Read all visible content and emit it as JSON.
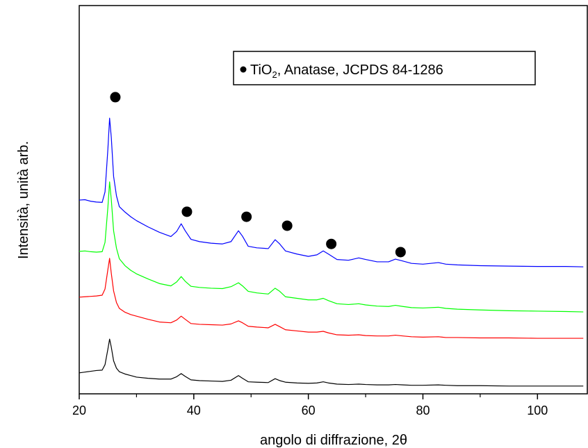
{
  "chart_data": {
    "type": "line",
    "x_label": "angolo di diffrazione, 2θ",
    "y_label": "Intensità, unità arb.",
    "xlim": [
      20,
      108.7
    ],
    "ylim": [
      0,
      100
    ],
    "xticks": [
      20,
      40,
      60,
      80,
      100
    ],
    "xminor_ticks": [
      30,
      50,
      70,
      90
    ],
    "x": [
      20,
      21,
      22,
      23,
      24,
      24.5,
      25,
      25.3,
      25.6,
      26,
      26.5,
      27,
      28,
      29,
      30,
      32,
      34,
      36,
      37,
      37.8,
      38.5,
      39.5,
      41,
      43,
      45,
      46.5,
      47.8,
      48.5,
      49.5,
      51,
      53,
      54.2,
      55,
      56,
      58,
      60,
      61.5,
      62.6,
      63.5,
      65,
      67,
      68.8,
      70,
      72,
      74,
      75.2,
      76.5,
      78,
      80,
      82.7,
      84,
      86,
      90,
      95,
      100,
      105,
      108
    ],
    "series": [
      {
        "color": "#000000",
        "values": [
          5.4,
          5.6,
          5.8,
          6.0,
          6.1,
          7.5,
          11.5,
          14.1,
          12,
          8.5,
          6.6,
          5.7,
          5.1,
          4.7,
          4.3,
          4.0,
          3.8,
          3.8,
          4.4,
          5.2,
          4.5,
          3.6,
          3.4,
          3.3,
          3.2,
          3.5,
          4.7,
          4.0,
          3.1,
          3.0,
          2.9,
          3.9,
          3.4,
          3.0,
          2.8,
          2.7,
          2.8,
          3.1,
          2.8,
          2.5,
          2.4,
          2.5,
          2.4,
          2.3,
          2.3,
          2.4,
          2.3,
          2.2,
          2.2,
          2.3,
          2.2,
          2.1,
          2.1,
          2.0,
          2.0,
          2.0,
          2.0
        ]
      },
      {
        "color": "#ff0000",
        "values": [
          24.9,
          25.0,
          25.1,
          25.2,
          25.4,
          27,
          32,
          34.9,
          31,
          26.5,
          23.5,
          22.0,
          21.0,
          20.4,
          20.0,
          19.2,
          18.5,
          18.3,
          19.0,
          20.0,
          19.2,
          18.1,
          17.9,
          17.8,
          17.7,
          18.0,
          18.8,
          18.3,
          17.4,
          17.2,
          17.0,
          17.9,
          17.3,
          16.5,
          16.2,
          15.9,
          15.9,
          16.1,
          15.7,
          15.2,
          15.1,
          15.2,
          15.0,
          14.9,
          14.9,
          15.1,
          14.9,
          14.7,
          14.6,
          14.7,
          14.5,
          14.5,
          14.4,
          14.4,
          14.3,
          14.3,
          14.3
        ]
      },
      {
        "color": "#00ff00",
        "values": [
          36.7,
          36.8,
          36.6,
          36.5,
          36.6,
          39,
          48,
          54.6,
          50,
          42,
          37.5,
          34.8,
          33.0,
          31.8,
          30.9,
          29.6,
          28.4,
          27.8,
          28.8,
          30.2,
          29.0,
          27.7,
          27.4,
          27.2,
          27.1,
          27.6,
          28.6,
          27.8,
          26.4,
          26.0,
          25.7,
          27.2,
          26.4,
          25.0,
          24.6,
          24.2,
          24.2,
          24.6,
          24.0,
          23.2,
          23.0,
          23.2,
          22.9,
          22.6,
          22.5,
          22.8,
          22.5,
          22.2,
          22.1,
          22.3,
          22.0,
          21.8,
          21.6,
          21.4,
          21.3,
          21.2,
          21.1
        ]
      },
      {
        "color": "#0000ff",
        "values": [
          49.9,
          50.0,
          49.6,
          49.4,
          49.3,
          52,
          63,
          71.0,
          66,
          56,
          51,
          48.2,
          46.8,
          45.6,
          44.6,
          43.0,
          41.6,
          40.5,
          41.8,
          43.8,
          42.0,
          39.8,
          39.2,
          38.8,
          38.6,
          39.2,
          42.0,
          40.6,
          38.0,
          37.6,
          37.4,
          39.7,
          38.6,
          36.8,
          36.0,
          35.4,
          35.8,
          36.8,
          36.0,
          34.6,
          34.4,
          35.0,
          34.6,
          34.0,
          34.0,
          34.7,
          34.2,
          33.6,
          33.4,
          33.8,
          33.4,
          33.2,
          33.0,
          32.9,
          32.8,
          32.8,
          32.7
        ]
      }
    ],
    "peak_markers": {
      "color": "#000000",
      "x": [
        26.3,
        38.8,
        49.2,
        56.3,
        64.0,
        76.1
      ],
      "y": [
        76.4,
        46.9,
        45.6,
        43.3,
        38.6,
        36.5
      ]
    },
    "legend": {
      "text_before": "TiO",
      "subscript": "2",
      "text_after": ", Anatase, JCPDS 84-1286"
    }
  }
}
